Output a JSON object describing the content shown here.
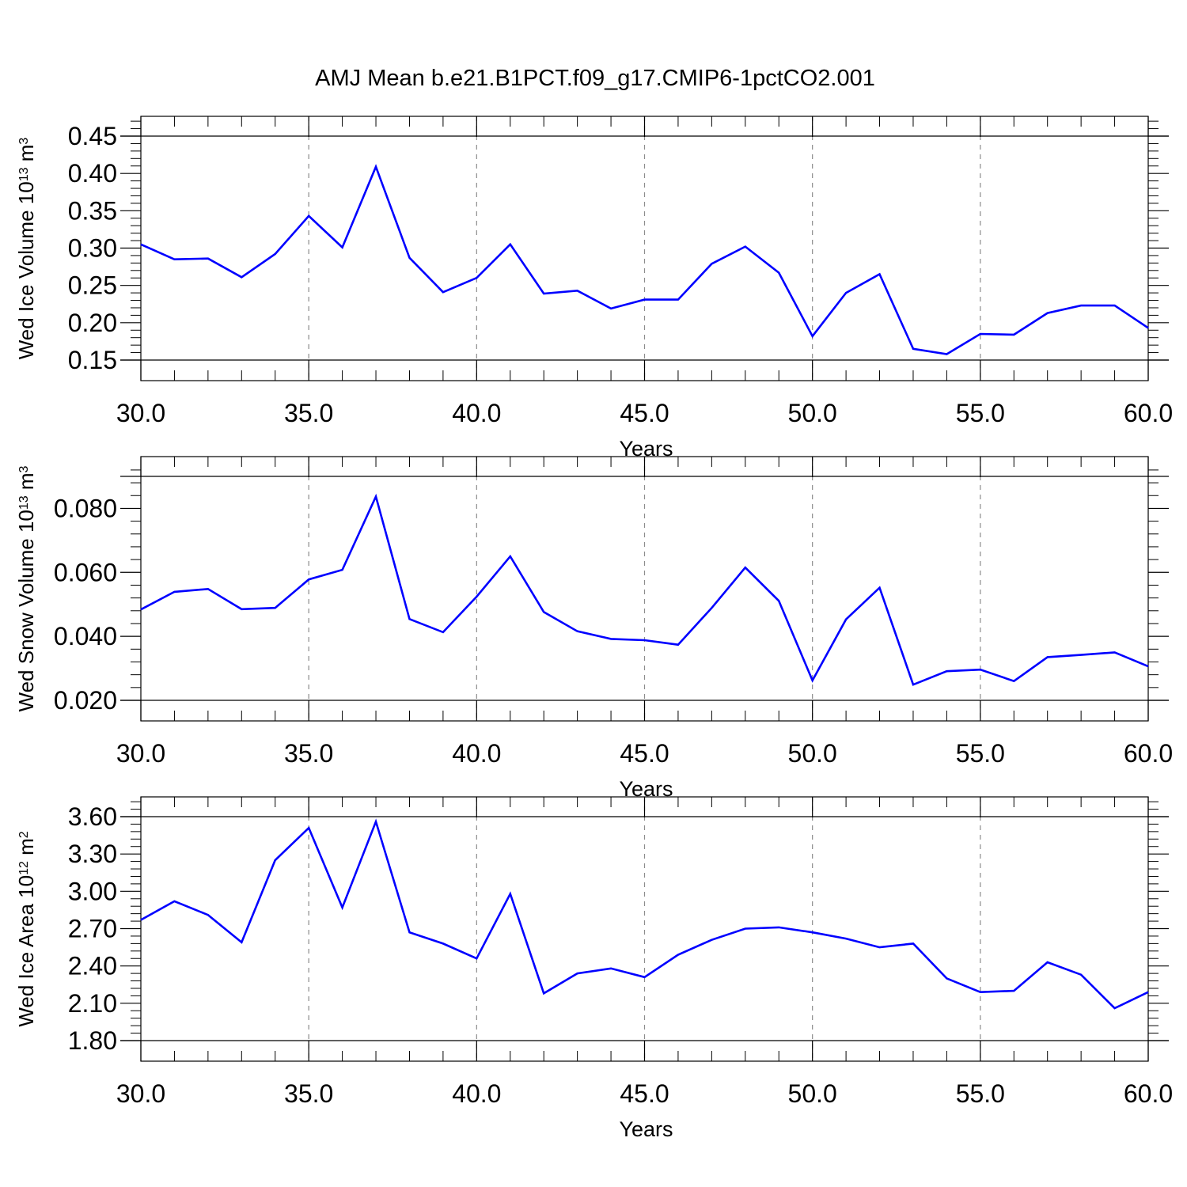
{
  "title": "AMJ Mean b.e21.B1PCT.f09_g17.CMIP6-1pctCO2.001",
  "colors": {
    "line": "#0000ff",
    "grid": "#8c8c8c",
    "axis": "#000000"
  },
  "chart_data": [
    {
      "type": "line",
      "ylabel": {
        "prefix": "Wed Ice Volume 10",
        "exp": "13",
        "unit": " m",
        "unit_exp": "3"
      },
      "xlabel": "Years",
      "xlim": [
        30,
        60
      ],
      "ylim": [
        0.15,
        0.45
      ],
      "x_ticks": [
        "30.0",
        "35.0",
        "40.0",
        "45.0",
        "50.0",
        "55.0",
        "60.0"
      ],
      "y_ticks": [
        "0.15",
        "0.20",
        "0.25",
        "0.30",
        "0.35",
        "0.40",
        "0.45"
      ],
      "grid": "vertical dashed at major x ticks",
      "x": [
        30,
        31,
        32,
        33,
        34,
        35,
        36,
        37,
        38,
        39,
        40,
        41,
        42,
        43,
        44,
        45,
        46,
        47,
        48,
        49,
        50,
        51,
        52,
        53,
        54,
        55,
        56,
        57,
        58,
        59,
        60
      ],
      "y": [
        0.305,
        0.285,
        0.286,
        0.261,
        0.292,
        0.343,
        0.301,
        0.409,
        0.287,
        0.241,
        0.26,
        0.305,
        0.239,
        0.243,
        0.219,
        0.231,
        0.231,
        0.279,
        0.302,
        0.267,
        0.182,
        0.24,
        0.265,
        0.165,
        0.158,
        0.185,
        0.184,
        0.213,
        0.223,
        0.223,
        0.193
      ]
    },
    {
      "type": "line",
      "ylabel": {
        "prefix": "Wed Snow Volume 10",
        "exp": "13",
        "unit": " m",
        "unit_exp": "3"
      },
      "xlabel": "Years",
      "xlim": [
        30,
        60
      ],
      "ylim": [
        0.02,
        0.09
      ],
      "x_ticks": [
        "30.0",
        "35.0",
        "40.0",
        "45.0",
        "50.0",
        "55.0",
        "60.0"
      ],
      "y_ticks": [
        "0.020",
        "0.040",
        "0.060",
        "0.080"
      ],
      "grid": "vertical dashed at major x ticks",
      "x": [
        30,
        31,
        32,
        33,
        34,
        35,
        36,
        37,
        38,
        39,
        40,
        41,
        42,
        43,
        44,
        45,
        46,
        47,
        48,
        49,
        50,
        51,
        52,
        53,
        54,
        55,
        56,
        57,
        58,
        59,
        60
      ],
      "y": [
        0.0484,
        0.0539,
        0.0548,
        0.0485,
        0.0489,
        0.0578,
        0.0608,
        0.0837,
        0.0454,
        0.0413,
        0.0524,
        0.065,
        0.0476,
        0.0416,
        0.0392,
        0.0388,
        0.0374,
        0.0489,
        0.0615,
        0.0511,
        0.0262,
        0.0453,
        0.0552,
        0.0249,
        0.0291,
        0.0296,
        0.026,
        0.0335,
        0.0342,
        0.035,
        0.0306
      ]
    },
    {
      "type": "line",
      "ylabel": {
        "prefix": "Wed Ice Area 10",
        "exp": "12",
        "unit": " m",
        "unit_exp": "2"
      },
      "xlabel": "Years",
      "xlim": [
        30,
        60
      ],
      "ylim": [
        1.8,
        3.6
      ],
      "x_ticks": [
        "30.0",
        "35.0",
        "40.0",
        "45.0",
        "50.0",
        "55.0",
        "60.0"
      ],
      "y_ticks": [
        "1.80",
        "2.10",
        "2.40",
        "2.70",
        "3.00",
        "3.30",
        "3.60"
      ],
      "grid": "vertical dashed at major x ticks",
      "x": [
        30,
        31,
        32,
        33,
        34,
        35,
        36,
        37,
        38,
        39,
        40,
        41,
        42,
        43,
        44,
        45,
        46,
        47,
        48,
        49,
        50,
        51,
        52,
        53,
        54,
        55,
        56,
        57,
        58,
        59,
        60
      ],
      "y": [
        2.77,
        2.92,
        2.81,
        2.59,
        3.25,
        3.51,
        2.87,
        3.56,
        2.67,
        2.58,
        2.46,
        2.98,
        2.18,
        2.34,
        2.38,
        2.31,
        2.49,
        2.61,
        2.7,
        2.71,
        2.67,
        2.62,
        2.55,
        2.58,
        2.3,
        2.19,
        2.2,
        2.43,
        2.33,
        2.06,
        2.19
      ]
    }
  ]
}
